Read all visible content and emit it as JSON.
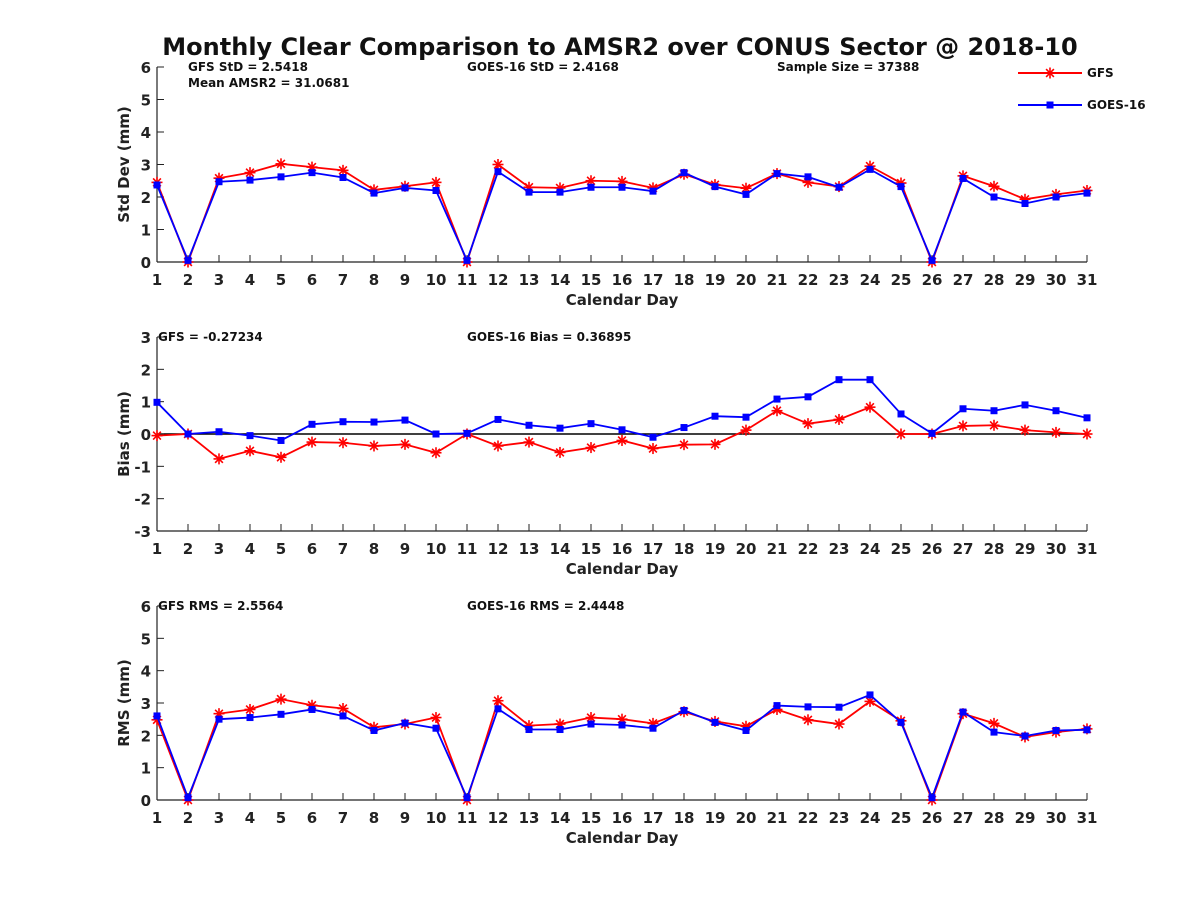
{
  "figure": {
    "title": "Monthly Clear Comparison to AMSR2 over CONUS Sector @ 2018-10",
    "legend": {
      "placement": "top-right",
      "items": [
        {
          "name": "GFS",
          "color": "#ff0000",
          "marker": "asterisk"
        },
        {
          "name": "GOES-16",
          "color": "#0000ff",
          "marker": "square"
        }
      ]
    }
  },
  "chart_data": [
    {
      "type": "line",
      "xlabel": "Calendar Day",
      "ylabel": "Std Dev (mm)",
      "xlim": [
        1,
        31
      ],
      "ylim": [
        0,
        6
      ],
      "yticks": [
        0,
        1,
        2,
        3,
        4,
        5,
        6
      ],
      "x": [
        1,
        2,
        3,
        4,
        5,
        6,
        7,
        8,
        9,
        10,
        11,
        12,
        13,
        14,
        15,
        16,
        17,
        18,
        19,
        20,
        21,
        22,
        23,
        24,
        25,
        26,
        27,
        28,
        29,
        30,
        31
      ],
      "annotations": [
        "GFS StD = 2.5418",
        "Mean AMSR2 = 31.0681",
        "GOES-16 StD = 2.4168",
        "Sample Size = 37388"
      ],
      "series": [
        {
          "name": "GFS",
          "color": "#ff0000",
          "values": [
            2.45,
            0.0,
            2.58,
            2.75,
            3.02,
            2.92,
            2.82,
            2.22,
            2.33,
            2.45,
            0.0,
            3.0,
            2.3,
            2.28,
            2.5,
            2.48,
            2.28,
            2.7,
            2.38,
            2.27,
            2.72,
            2.45,
            2.32,
            2.95,
            2.43,
            0.0,
            2.65,
            2.33,
            1.93,
            2.08,
            2.2
          ]
        },
        {
          "name": "GOES-16",
          "color": "#0000ff",
          "values": [
            2.37,
            0.05,
            2.47,
            2.52,
            2.62,
            2.75,
            2.6,
            2.12,
            2.28,
            2.2,
            0.05,
            2.78,
            2.15,
            2.15,
            2.3,
            2.3,
            2.18,
            2.75,
            2.32,
            2.08,
            2.72,
            2.62,
            2.3,
            2.85,
            2.32,
            0.05,
            2.57,
            2.0,
            1.8,
            2.0,
            2.12
          ]
        }
      ]
    },
    {
      "type": "line",
      "xlabel": "Calendar Day",
      "ylabel": "Bias (mm)",
      "xlim": [
        1,
        31
      ],
      "ylim": [
        -3,
        3
      ],
      "yticks": [
        -3,
        -2,
        -1,
        0,
        1,
        2,
        3
      ],
      "zero_line": true,
      "x": [
        1,
        2,
        3,
        4,
        5,
        6,
        7,
        8,
        9,
        10,
        11,
        12,
        13,
        14,
        15,
        16,
        17,
        18,
        19,
        20,
        21,
        22,
        23,
        24,
        25,
        26,
        27,
        28,
        29,
        30,
        31
      ],
      "annotations": [
        "GFS = -0.27234",
        "GOES-16 Bias = 0.36895"
      ],
      "series": [
        {
          "name": "GFS",
          "color": "#ff0000",
          "values": [
            -0.05,
            0.0,
            -0.77,
            -0.52,
            -0.72,
            -0.25,
            -0.27,
            -0.37,
            -0.32,
            -0.58,
            0.0,
            -0.37,
            -0.25,
            -0.57,
            -0.42,
            -0.2,
            -0.45,
            -0.33,
            -0.32,
            0.12,
            0.72,
            0.32,
            0.45,
            0.83,
            0.0,
            0.0,
            0.25,
            0.27,
            0.12,
            0.05,
            0.0
          ]
        },
        {
          "name": "GOES-16",
          "color": "#0000ff",
          "values": [
            0.98,
            0.0,
            0.07,
            -0.05,
            -0.2,
            0.3,
            0.38,
            0.37,
            0.43,
            0.0,
            0.02,
            0.45,
            0.27,
            0.18,
            0.32,
            0.13,
            -0.1,
            0.2,
            0.55,
            0.52,
            1.08,
            1.15,
            1.68,
            1.68,
            0.62,
            0.02,
            0.78,
            0.72,
            0.9,
            0.72,
            0.5
          ]
        }
      ]
    },
    {
      "type": "line",
      "xlabel": "Calendar Day",
      "ylabel": "RMS (mm)",
      "xlim": [
        1,
        31
      ],
      "ylim": [
        0,
        6
      ],
      "yticks": [
        0,
        1,
        2,
        3,
        4,
        5,
        6
      ],
      "x": [
        1,
        2,
        3,
        4,
        5,
        6,
        7,
        8,
        9,
        10,
        11,
        12,
        13,
        14,
        15,
        16,
        17,
        18,
        19,
        20,
        21,
        22,
        23,
        24,
        25,
        26,
        27,
        28,
        29,
        30,
        31
      ],
      "annotations": [
        "GFS RMS = 2.5564",
        "GOES-16 RMS = 2.4448"
      ],
      "series": [
        {
          "name": "GFS",
          "color": "#ff0000",
          "values": [
            2.48,
            0.0,
            2.67,
            2.8,
            3.12,
            2.93,
            2.83,
            2.25,
            2.35,
            2.55,
            0.0,
            3.07,
            2.3,
            2.35,
            2.55,
            2.5,
            2.37,
            2.73,
            2.43,
            2.28,
            2.8,
            2.48,
            2.35,
            3.05,
            2.45,
            0.0,
            2.67,
            2.37,
            1.95,
            2.1,
            2.2
          ]
        },
        {
          "name": "GOES-16",
          "color": "#0000ff",
          "values": [
            2.6,
            0.07,
            2.5,
            2.55,
            2.65,
            2.8,
            2.6,
            2.15,
            2.38,
            2.22,
            0.07,
            2.82,
            2.18,
            2.18,
            2.35,
            2.32,
            2.22,
            2.77,
            2.4,
            2.15,
            2.92,
            2.88,
            2.87,
            3.25,
            2.4,
            0.07,
            2.72,
            2.1,
            1.98,
            2.15,
            2.17
          ]
        }
      ]
    }
  ]
}
